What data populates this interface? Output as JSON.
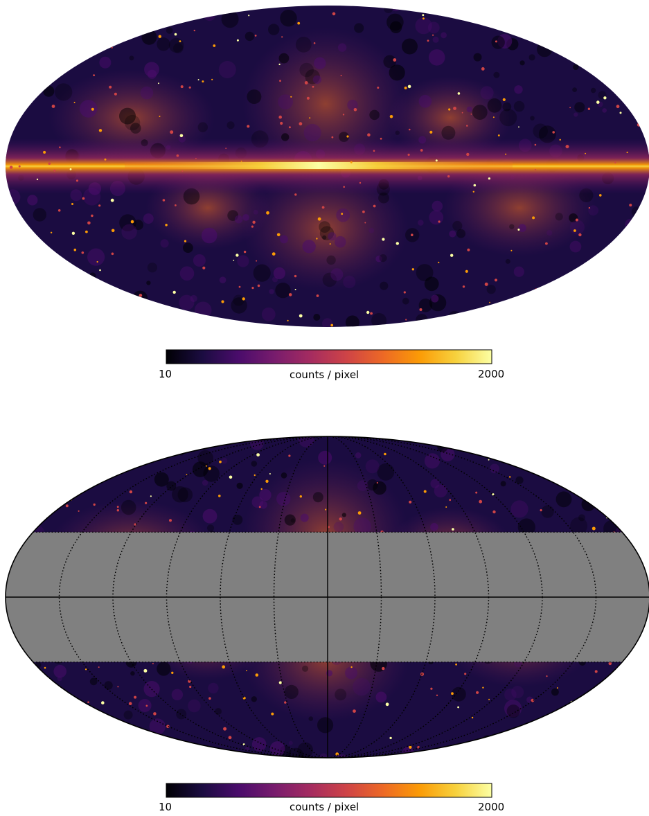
{
  "chart_data": [
    {
      "type": "heatmap",
      "projection": "mollweide",
      "title": "",
      "colormap": "inferno",
      "scale": "log",
      "colorbar": {
        "min": 10,
        "max": 2000,
        "label": "counts / pixel",
        "min_label": "10",
        "max_label": "2000",
        "placement": "bottom"
      },
      "mask": null,
      "graticule": false
    },
    {
      "type": "heatmap",
      "projection": "mollweide",
      "title": "",
      "colormap": "inferno",
      "scale": "log",
      "colorbar": {
        "min": 10,
        "max": 2000,
        "label": "counts / pixel",
        "min_label": "10",
        "max_label": "2000",
        "placement": "bottom"
      },
      "mask": {
        "lat_min": -30,
        "lat_max": 30,
        "color": "#808080"
      },
      "graticule": true
    }
  ],
  "colors": {
    "background": "#000004",
    "mask": "#808080",
    "inferno": [
      "#000004",
      "#1b0c41",
      "#4a0c6b",
      "#781c6d",
      "#a52c60",
      "#cf4446",
      "#ed6925",
      "#fb9b06",
      "#f7d13d",
      "#fcffa4"
    ]
  }
}
